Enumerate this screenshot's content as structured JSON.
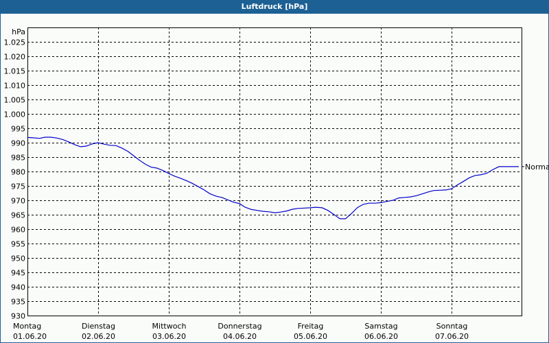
{
  "window": {
    "title": "Luftdruck [hPa]"
  },
  "colors": {
    "titlebar": "#1d6094",
    "background": "#fafcfa",
    "line": "#0000c8",
    "grid": "#000000"
  },
  "chart_data": {
    "type": "line",
    "title": "Luftdruck [hPa]",
    "xlabel": "",
    "ylabel": "hPa",
    "ylim": [
      930,
      1030
    ],
    "grid": true,
    "y_ticks": [
      "930",
      "935",
      "940",
      "945",
      "950",
      "955",
      "960",
      "965",
      "970",
      "975",
      "980",
      "985",
      "990",
      "995",
      "1.000",
      "1.005",
      "1.010",
      "1.015",
      "1.020",
      "1.025"
    ],
    "x_ticks": [
      {
        "day": "Montag",
        "date": "01.06.20"
      },
      {
        "day": "Dienstag",
        "date": "02.06.20"
      },
      {
        "day": "Mittwoch",
        "date": "03.06.20"
      },
      {
        "day": "Donnerstag",
        "date": "04.06.20"
      },
      {
        "day": "Freitag",
        "date": "05.06.20"
      },
      {
        "day": "Samstag",
        "date": "06.06.20"
      },
      {
        "day": "Sonntag",
        "date": "07.06.20"
      }
    ],
    "annotations": [
      {
        "text": "Normal",
        "y": 981.7
      }
    ],
    "series": [
      {
        "name": "Luftdruck",
        "x_days": [
          0,
          0.08,
          0.17,
          0.25,
          0.33,
          0.42,
          0.5,
          0.58,
          0.67,
          0.75,
          0.83,
          0.92,
          1.0,
          1.08,
          1.17,
          1.25,
          1.33,
          1.42,
          1.5,
          1.58,
          1.67,
          1.75,
          1.83,
          1.92,
          2.0,
          2.08,
          2.17,
          2.25,
          2.33,
          2.42,
          2.5,
          2.58,
          2.67,
          2.75,
          2.83,
          2.92,
          3.0,
          3.08,
          3.17,
          3.25,
          3.33,
          3.42,
          3.5,
          3.58,
          3.67,
          3.75,
          3.83,
          3.92,
          4.0,
          4.08,
          4.17,
          4.25,
          4.33,
          4.42,
          4.5,
          4.58,
          4.67,
          4.75,
          4.83,
          4.92,
          5.0,
          5.08,
          5.17,
          5.25,
          5.33,
          5.42,
          5.5,
          5.58,
          5.67,
          5.75,
          5.83,
          5.92,
          6.0,
          6.08,
          6.17,
          6.25,
          6.33,
          6.42,
          6.5,
          6.58,
          6.67,
          6.75,
          6.83,
          6.92,
          7.0
        ],
        "values": [
          991.8,
          991.7,
          991.5,
          991.9,
          991.9,
          991.6,
          991.1,
          990.3,
          989.3,
          988.6,
          988.8,
          989.6,
          990.0,
          989.5,
          989.1,
          989.0,
          988.2,
          987.0,
          985.5,
          984.0,
          982.5,
          981.5,
          981.2,
          980.3,
          979.3,
          978.4,
          977.6,
          976.8,
          975.9,
          974.7,
          973.6,
          972.3,
          971.4,
          971.0,
          970.2,
          969.3,
          968.9,
          967.6,
          966.8,
          966.5,
          966.2,
          966.0,
          965.7,
          965.9,
          966.3,
          966.9,
          967.2,
          967.3,
          967.4,
          967.6,
          967.4,
          966.5,
          965.2,
          963.6,
          963.6,
          965.3,
          967.5,
          968.6,
          969.0,
          969.0,
          969.2,
          969.6,
          970.0,
          970.8,
          971.0,
          971.2,
          971.6,
          972.2,
          972.9,
          973.4,
          973.5,
          973.6,
          974.0,
          975.3,
          976.6,
          977.8,
          978.6,
          978.9,
          979.4,
          980.6,
          981.7,
          981.7,
          981.7,
          981.7,
          981.7
        ]
      }
    ]
  }
}
